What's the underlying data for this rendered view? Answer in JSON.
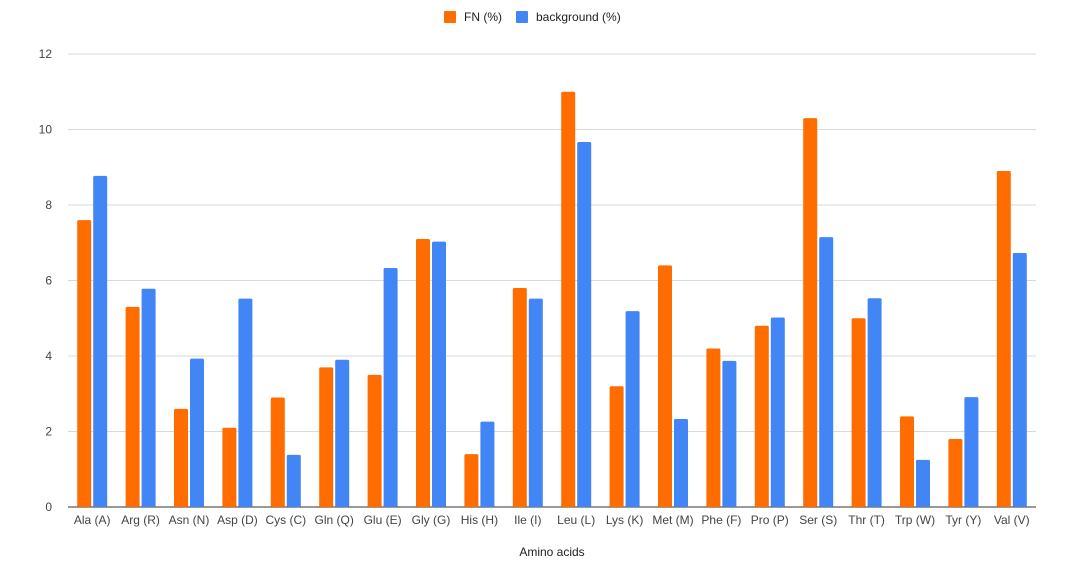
{
  "chart_data": {
    "type": "bar",
    "title": "",
    "xlabel": "Amino acids",
    "ylabel": "",
    "ylim": [
      0,
      12
    ],
    "yticks": [
      0,
      2,
      4,
      6,
      8,
      10,
      12
    ],
    "grid": true,
    "legend_position": "top-center",
    "categories": [
      "Ala (A)",
      "Arg (R)",
      "Asn (N)",
      "Asp (D)",
      "Cys (C)",
      "Gln (Q)",
      "Glu (E)",
      "Gly (G)",
      "His (H)",
      "Ile (I)",
      "Leu (L)",
      "Lys (K)",
      "Met (M)",
      "Phe (F)",
      "Pro (P)",
      "Ser (S)",
      "Thr (T)",
      "Trp (W)",
      "Tyr (Y)",
      "Val (V)"
    ],
    "series": [
      {
        "name": "FN (%)",
        "color": "#ff6d01",
        "values": [
          7.6,
          5.3,
          2.6,
          2.1,
          2.9,
          3.7,
          3.5,
          7.1,
          1.4,
          5.8,
          11.0,
          3.2,
          6.4,
          4.2,
          4.8,
          10.3,
          5.0,
          2.4,
          1.8,
          8.9
        ]
      },
      {
        "name": "background (%)",
        "color": "#4285f4",
        "values": [
          8.77,
          5.78,
          3.93,
          5.52,
          1.38,
          3.9,
          6.33,
          7.03,
          2.26,
          5.52,
          9.67,
          5.19,
          2.33,
          3.87,
          5.02,
          7.15,
          5.53,
          1.25,
          2.91,
          6.73
        ]
      }
    ]
  }
}
